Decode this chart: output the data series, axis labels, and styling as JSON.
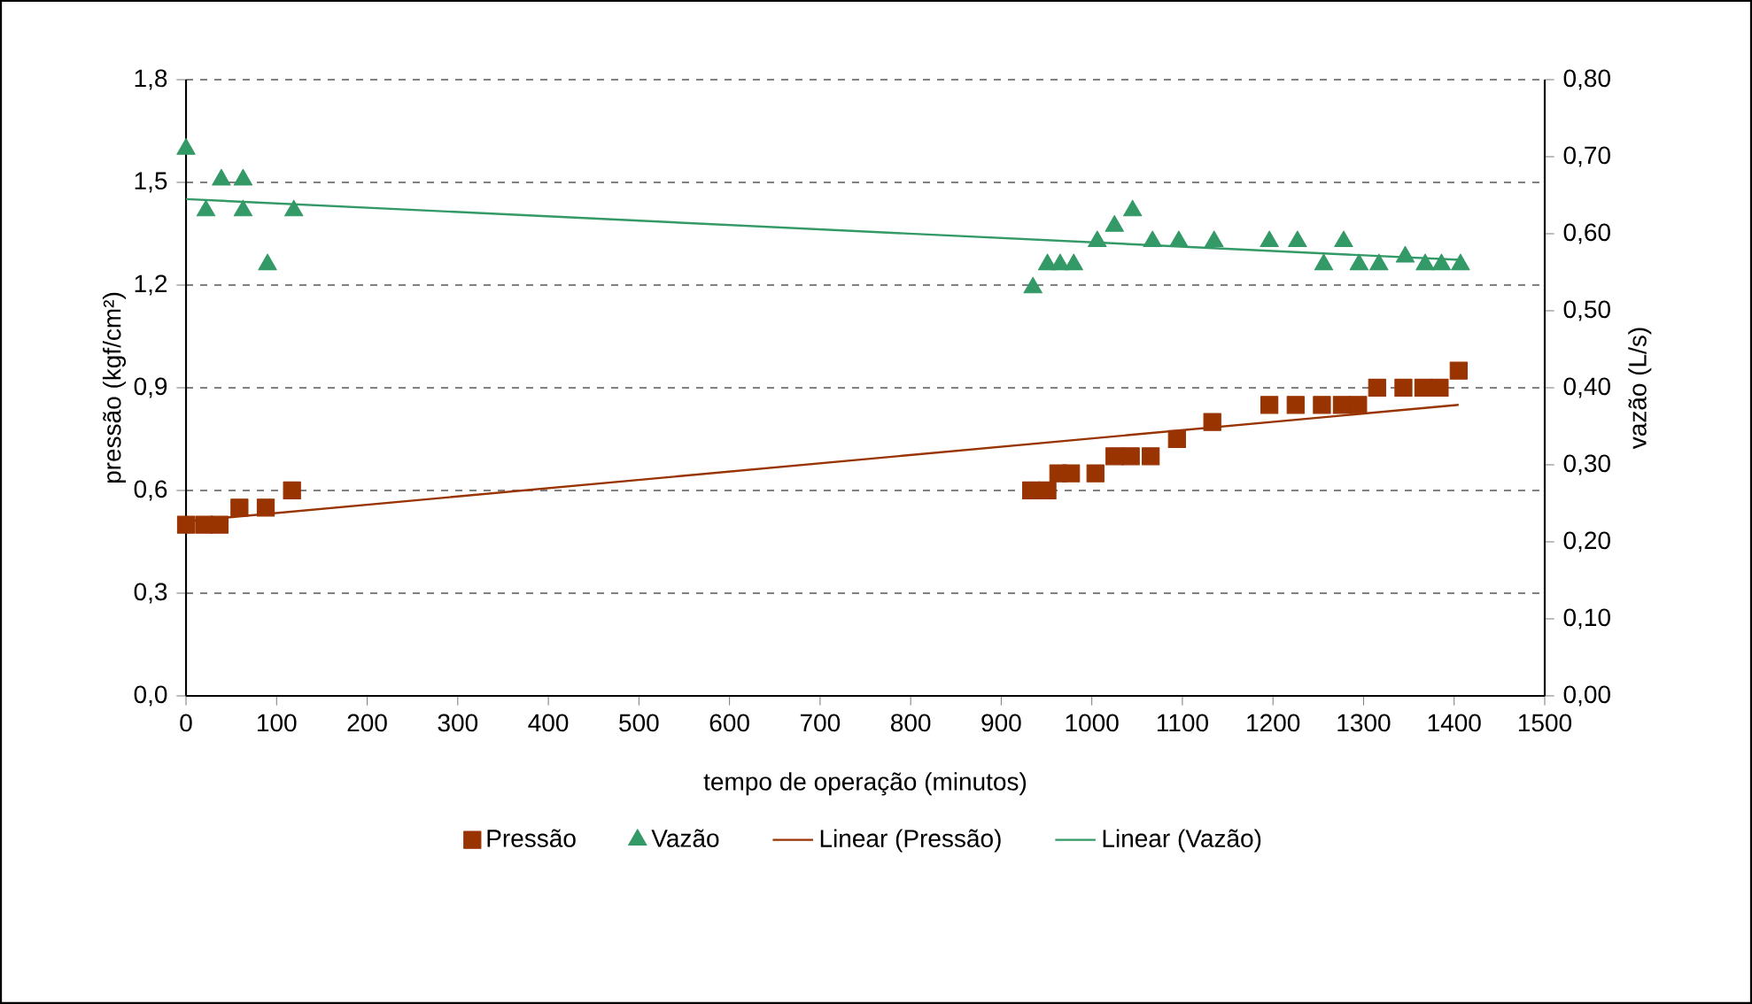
{
  "chart_data": {
    "type": "scatter",
    "xlabel": "tempo de operação (minutos)",
    "ylabel": "pressão (kgf/cm²)",
    "y2label": "vazão (L/s)",
    "xlim": [
      0,
      1500
    ],
    "xticks": [
      0,
      100,
      200,
      300,
      400,
      500,
      600,
      700,
      800,
      900,
      1000,
      1100,
      1200,
      1300,
      1400,
      1500
    ],
    "ylim": [
      0,
      1.8
    ],
    "yticks": [
      {
        "value": 0,
        "label": "0,0"
      },
      {
        "value": 0.3,
        "label": "0,3"
      },
      {
        "value": 0.6,
        "label": "0,6"
      },
      {
        "value": 0.9,
        "label": "0,9"
      },
      {
        "value": 1.2,
        "label": "1,2"
      },
      {
        "value": 1.5,
        "label": "1,5"
      },
      {
        "value": 1.8,
        "label": "1,8"
      }
    ],
    "y2lim": [
      0,
      0.8
    ],
    "y2ticks": [
      {
        "value": 0,
        "label": "0,00"
      },
      {
        "value": 0.1,
        "label": "0,10"
      },
      {
        "value": 0.2,
        "label": "0,20"
      },
      {
        "value": 0.3,
        "label": "0,30"
      },
      {
        "value": 0.4,
        "label": "0,40"
      },
      {
        "value": 0.5,
        "label": "0,50"
      },
      {
        "value": 0.6,
        "label": "0,60"
      },
      {
        "value": 0.7,
        "label": "0,70"
      },
      {
        "value": 0.8,
        "label": "0,80"
      }
    ],
    "grid": "y",
    "legend": "bottom",
    "series": [
      {
        "name": "Pressão",
        "marker": "square",
        "color": "#993300",
        "x": [
          0,
          20,
          37,
          59,
          88,
          117,
          933,
          951,
          963,
          977,
          1004,
          1025,
          1043,
          1065,
          1094,
          1133,
          1196,
          1225,
          1254,
          1276,
          1294,
          1315,
          1344,
          1366,
          1384,
          1405
        ],
        "values": [
          0.5,
          0.5,
          0.5,
          0.55,
          0.55,
          0.6,
          0.6,
          0.6,
          0.65,
          0.65,
          0.65,
          0.7,
          0.7,
          0.7,
          0.75,
          0.8,
          0.85,
          0.85,
          0.85,
          0.85,
          0.85,
          0.9,
          0.9,
          0.9,
          0.9,
          0.95
        ]
      },
      {
        "name": "Vazão",
        "marker": "triangle",
        "axis": "y2",
        "color": "#339966",
        "x": [
          0,
          22,
          39,
          63,
          63,
          90,
          119,
          935,
          951,
          965,
          980,
          1006,
          1025,
          1045,
          1067,
          1096,
          1135,
          1196,
          1227,
          1256,
          1278,
          1295,
          1317,
          1346,
          1368,
          1386,
          1407
        ],
        "values": [
          0.71,
          0.63,
          0.67,
          0.67,
          0.63,
          0.56,
          0.63,
          0.53,
          0.56,
          0.56,
          0.56,
          0.59,
          0.61,
          0.63,
          0.59,
          0.59,
          0.59,
          0.59,
          0.59,
          0.56,
          0.59,
          0.56,
          0.56,
          0.57,
          0.56,
          0.56,
          0.56
        ]
      },
      {
        "name": "Linear (Pressão)",
        "type": "line",
        "marker": "none",
        "color": "#993300",
        "x": [
          0,
          1405
        ],
        "values": [
          0.51,
          0.85
        ]
      },
      {
        "name": "Linear (Vazão)",
        "type": "line",
        "marker": "none",
        "axis": "y2",
        "color": "#339966",
        "x": [
          0,
          1407
        ],
        "values": [
          0.645,
          0.566
        ]
      }
    ]
  }
}
